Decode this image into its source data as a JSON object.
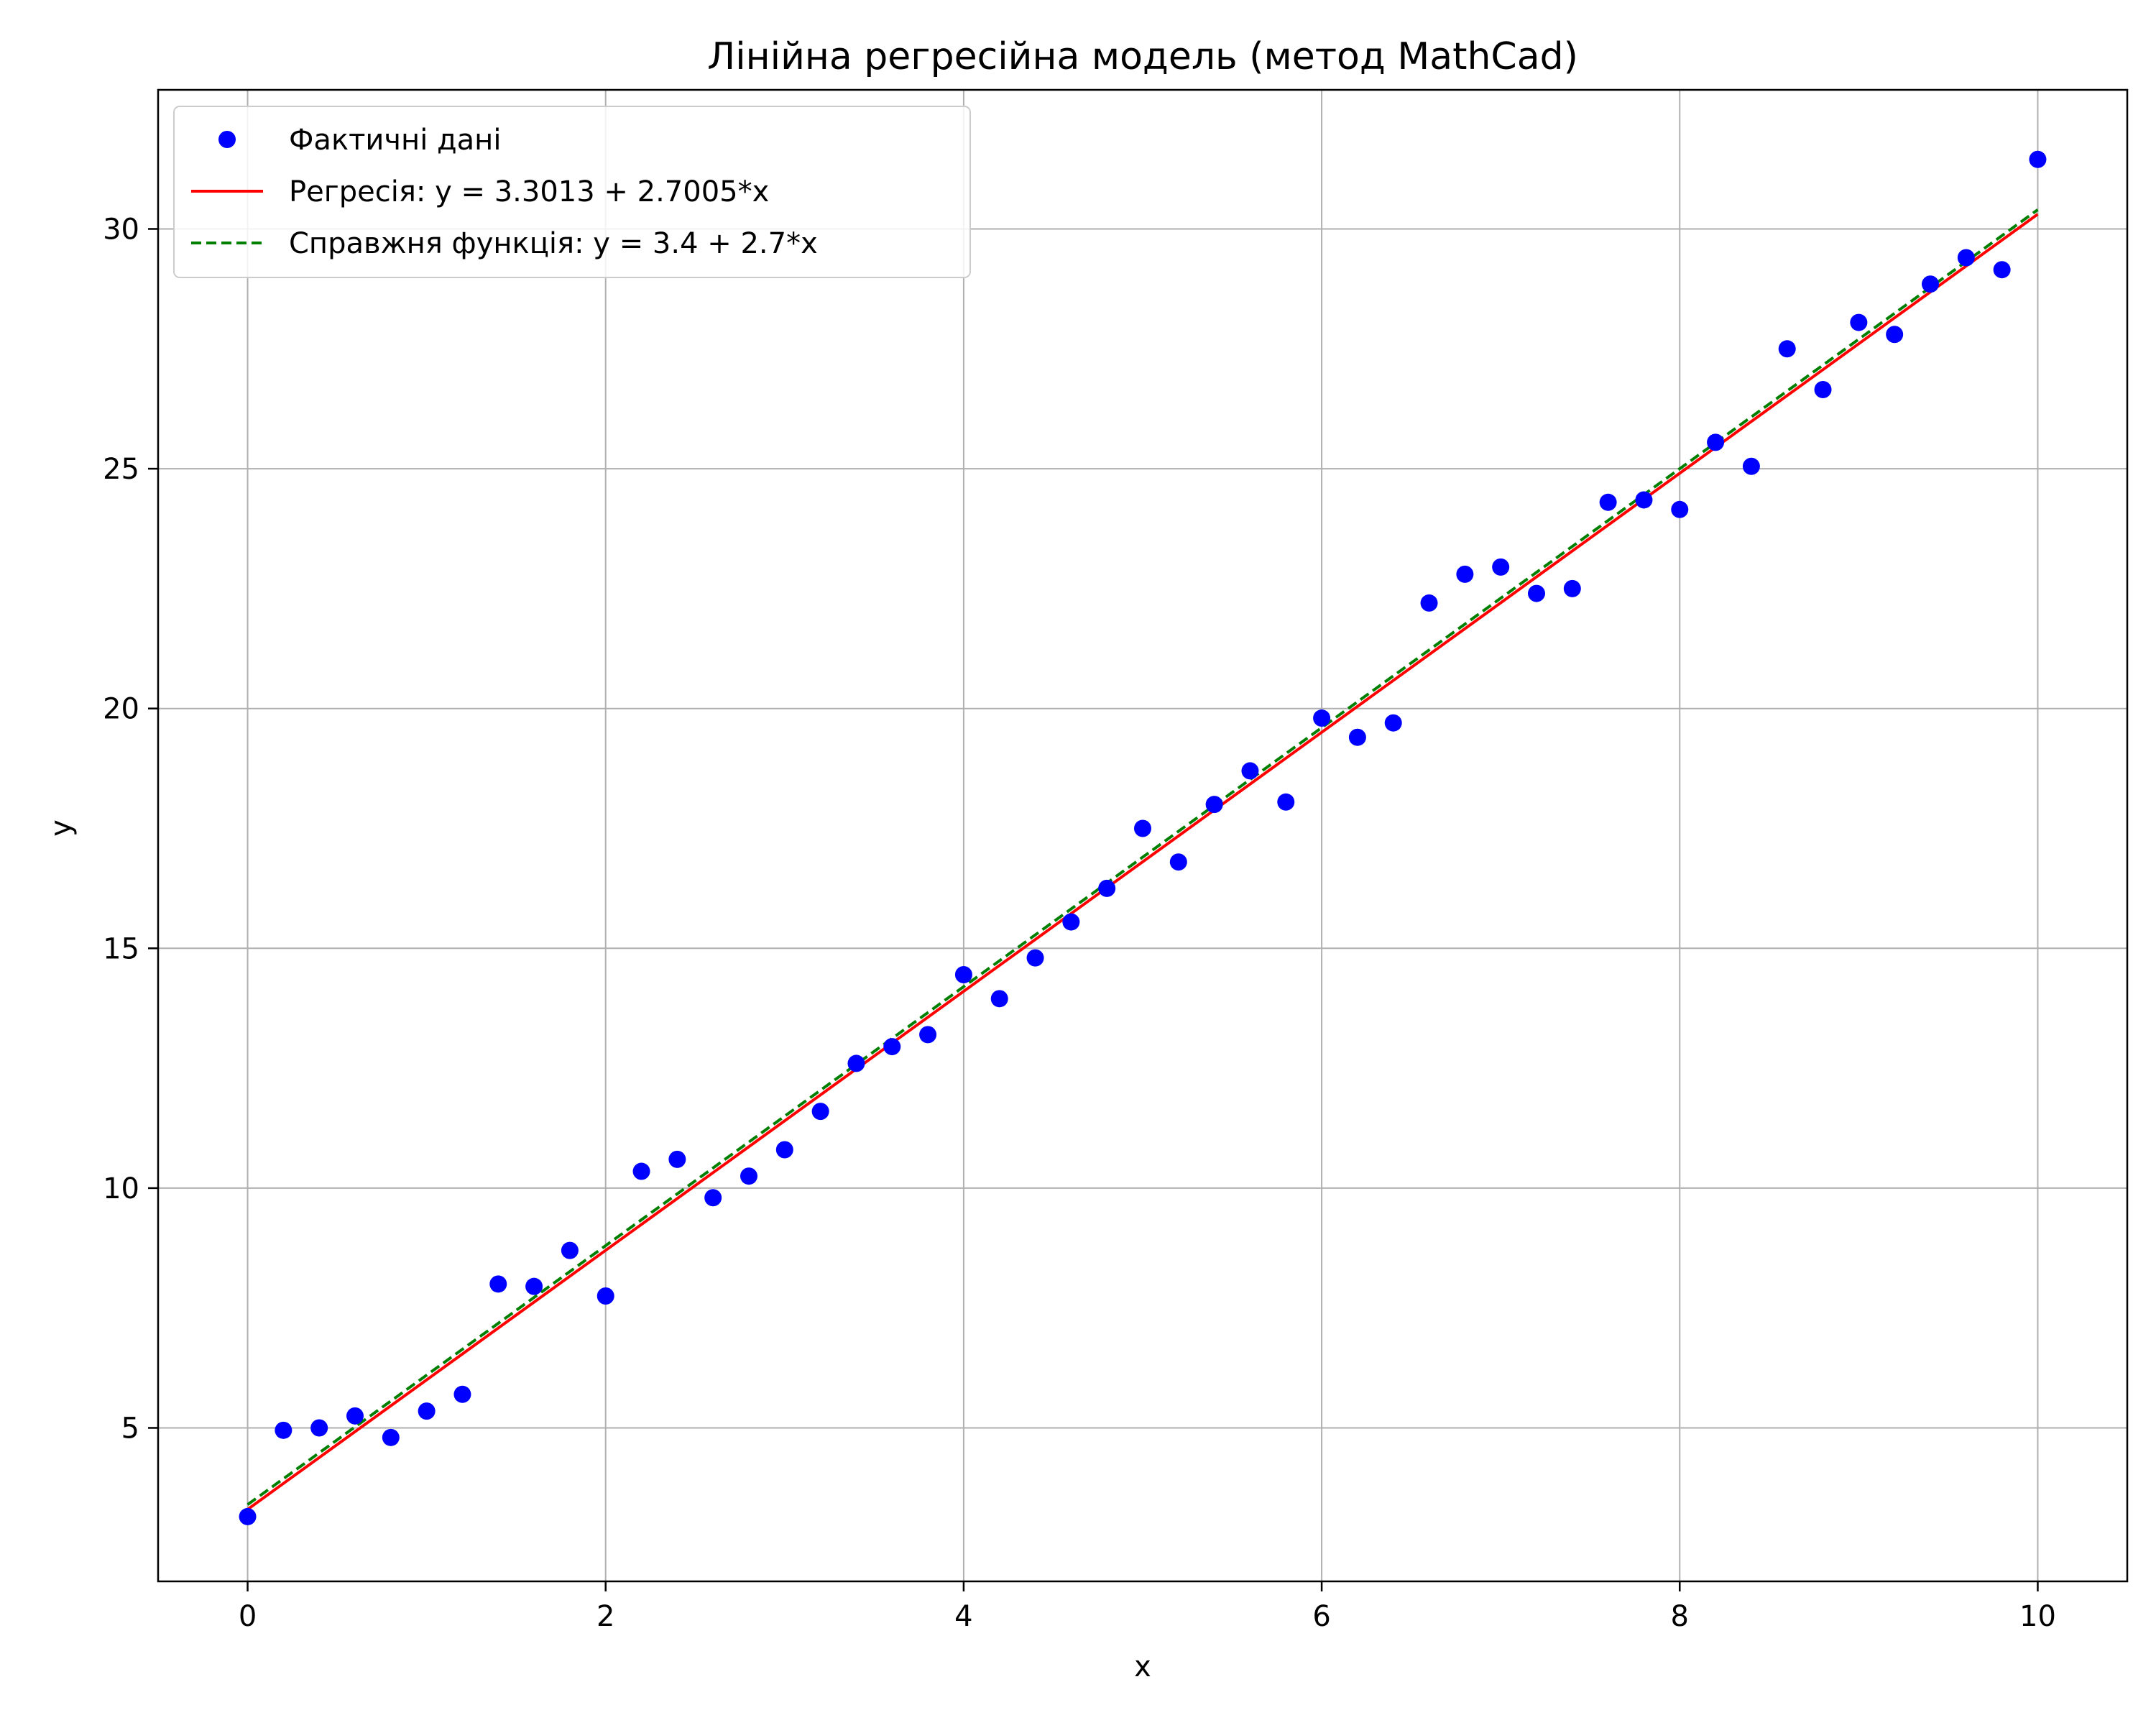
{
  "chart_data": {
    "type": "scatter",
    "title": "Лінійна регресійна модель (метод MathCad)",
    "xlabel": "x",
    "ylabel": "y",
    "xlim": [
      -0.5,
      10.5
    ],
    "ylim": [
      1.8,
      32.9
    ],
    "xticks": [
      0,
      2,
      4,
      6,
      8,
      10
    ],
    "yticks": [
      5,
      10,
      15,
      20,
      25,
      30
    ],
    "xtick_labels": [
      "0",
      "2",
      "4",
      "6",
      "8",
      "10"
    ],
    "ytick_labels": [
      "5",
      "10",
      "15",
      "20",
      "25",
      "30"
    ],
    "grid": true,
    "legend_position": "top-left",
    "series": [
      {
        "name": "Фактичні дані",
        "kind": "scatter",
        "color": "#0000ff",
        "x": [
          0.0,
          0.2,
          0.4,
          0.6,
          0.8,
          1.0,
          1.2,
          1.4,
          1.6,
          1.8,
          2.0,
          2.2,
          2.4,
          2.6,
          2.8,
          3.0,
          3.2,
          3.4,
          3.6,
          3.8,
          4.0,
          4.2,
          4.4,
          4.6,
          4.8,
          5.0,
          5.2,
          5.4,
          5.6,
          5.8,
          6.0,
          6.2,
          6.4,
          6.6,
          6.8,
          7.0,
          7.2,
          7.4,
          7.6,
          7.8,
          8.0,
          8.2,
          8.4,
          8.6,
          8.8,
          9.0,
          9.2,
          9.4,
          9.6,
          9.8,
          10.0
        ],
        "y": [
          3.15,
          4.95,
          5.0,
          5.25,
          4.8,
          5.35,
          5.7,
          8.0,
          7.95,
          8.7,
          7.75,
          10.35,
          10.6,
          9.8,
          10.25,
          10.8,
          11.6,
          12.6,
          12.95,
          13.2,
          14.45,
          13.95,
          14.8,
          15.55,
          16.25,
          17.5,
          16.8,
          18.0,
          18.7,
          18.05,
          19.8,
          19.4,
          19.7,
          22.2,
          22.8,
          22.95,
          22.4,
          22.5,
          24.3,
          24.35,
          24.15,
          25.55,
          25.05,
          27.5,
          26.65,
          28.05,
          27.8,
          28.85,
          29.4,
          29.15,
          31.45
        ]
      },
      {
        "name": "Регресія: y = 3.3013 + 2.7005*x",
        "kind": "line",
        "color": "#ff0000",
        "style": "solid",
        "x": [
          0,
          10
        ],
        "y": [
          3.3013,
          30.3063
        ]
      },
      {
        "name": "Справжня функція: y = 3.4 + 2.7*x",
        "kind": "line",
        "color": "#007f00",
        "style": "dashed",
        "x": [
          0,
          10
        ],
        "y": [
          3.4,
          30.4
        ]
      }
    ]
  }
}
